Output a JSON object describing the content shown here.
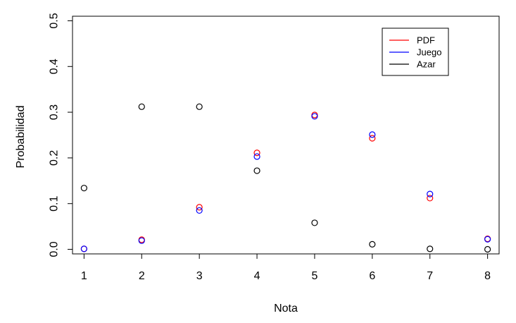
{
  "chart_data": {
    "type": "scatter",
    "title": "",
    "xlabel": "Nota",
    "ylabel": "Probabilidad",
    "xlim": [
      0.8,
      8.2
    ],
    "ylim": [
      -0.01,
      0.51
    ],
    "x_ticks": [
      1,
      2,
      3,
      4,
      5,
      6,
      7,
      8
    ],
    "y_ticks": [
      0.0,
      0.1,
      0.2,
      0.3,
      0.4,
      0.5
    ],
    "y_tick_labels": [
      "0.0",
      "0.1",
      "0.2",
      "0.3",
      "0.4",
      "0.5"
    ],
    "grid": false,
    "legend_position": "top-right",
    "x": [
      1,
      2,
      3,
      4,
      5,
      6,
      7,
      8
    ],
    "series": [
      {
        "name": "PDF",
        "color": "#ff0000",
        "marker": "open-circle",
        "values": [
          0.001,
          0.021,
          0.092,
          0.211,
          0.294,
          0.243,
          0.112,
          0.023
        ]
      },
      {
        "name": "Juego",
        "color": "#0000ff",
        "marker": "open-circle",
        "values": [
          0.001,
          0.019,
          0.085,
          0.203,
          0.291,
          0.251,
          0.121,
          0.022
        ]
      },
      {
        "name": "Azar",
        "color": "#000000",
        "marker": "open-circle",
        "values": [
          0.134,
          0.312,
          0.312,
          0.172,
          0.058,
          0.011,
          0.001,
          0.0
        ]
      }
    ]
  }
}
